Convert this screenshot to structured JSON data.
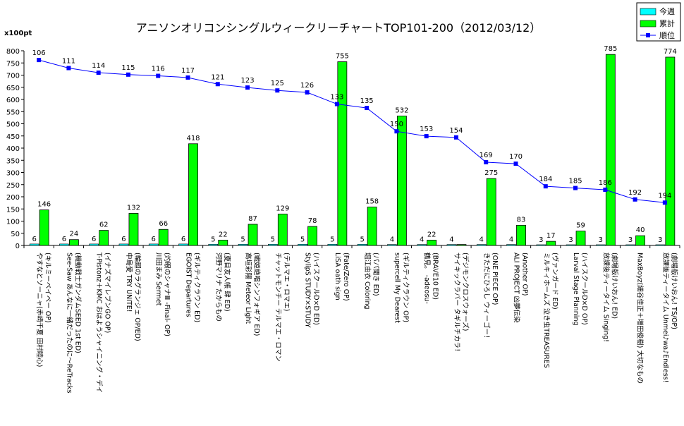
{
  "chart_data": {
    "type": "bar",
    "title": "アニソンオリコンシングルウィークリーチャートTOP101-200（2012/03/12）",
    "ylabel": "x100pt",
    "ylim": [
      0,
      800
    ],
    "yticks": [
      0,
      50,
      100,
      150,
      200,
      250,
      300,
      350,
      400,
      450,
      500,
      550,
      600,
      650,
      700,
      750,
      800
    ],
    "grid": false,
    "legend_position": "top-right",
    "categories": [
      "やすなとソーニャ(赤崎千夏 田村睦心) (キルミーベイベー OP)",
      "See-Saw あんなに一緒だったのに～ReTracks (機動戦士ガンダムSEED 1st ED)",
      "T-Pistonz＋KMC おはようシャイニング・デイ (イナズマイレブンGO OP)",
      "中島愛 TRY UNITE! (輪廻のラグランジェ OP/ED)",
      "川田まみ Sermet (灼眼のシャナⅢ -Final- OP)",
      "EGOIST Departures (ギルティクラウン ED)",
      "河野マリナ たからもの (夏目友人帳 肆 ED)",
      "高垣彩陽 Meteor Light (戦姫絶唱シンフォギア ED)",
      "チャットモンチー テルマエ・ロマン (テルマエ・ロマエ)",
      "StylipS STUDY×STUDY (ハイスクールD×D ED)",
      "LiSA oath sign (Fate/Zero OP)",
      "堀江由衣 Coloring (パパ聞き ED)",
      "supercell My Dearest (ギルティクラウン OP)",
      "鶴見。 -adeosu- (BRAVE10 ED)",
      "サイキックラバー タギルチカラ！ (デジモンクロスウォーズ)",
      "きただにひろし ウィーゴー！ (ONE PIECE OP)",
      "ALI PROJECT 凶夢伝染 (Another OP)",
      "ミルキィホームズ 泣き虫TREASURES (ヴァンガード ED)",
      "Larval Stage Planning (ハイスクールD×D OP)",
      "放課後ティータイム Singing! (劇場版けいおん! ED)",
      "MaxBoyz(細谷佳正＋増田俊樹) 大切なもの",
      "放課後ティータイム Unmei♪wa♪Endless! (劇場版けいおん! TS/OP)"
    ],
    "series": [
      {
        "name": "今週",
        "type": "bar",
        "color": "#00ffff",
        "values": [
          6,
          6,
          6,
          6,
          6,
          6,
          5,
          5,
          5,
          5,
          5,
          5,
          4,
          4,
          4,
          4,
          4,
          3,
          3,
          3,
          3,
          3
        ]
      },
      {
        "name": "累計",
        "type": "bar",
        "color": "#00ff00",
        "values": [
          146,
          24,
          62,
          132,
          66,
          418,
          22,
          87,
          129,
          78,
          755,
          158,
          532,
          22,
          4,
          275,
          83,
          17,
          59,
          785,
          40,
          774
        ]
      },
      {
        "name": "順位",
        "type": "line",
        "color": "#0000ff",
        "values": [
          106,
          111,
          114,
          115,
          116,
          117,
          121,
          123,
          125,
          126,
          133,
          135,
          150,
          153,
          154,
          169,
          170,
          184,
          185,
          186,
          192,
          194
        ],
        "plotted_values": [
          762,
          729,
          710,
          702,
          697,
          690,
          663,
          649,
          637,
          629,
          581,
          565,
          469,
          449,
          444,
          342,
          336,
          243,
          236,
          229,
          189,
          176
        ]
      }
    ],
    "labels": {
      "weekly": [
        "6",
        "6",
        "6",
        "6",
        "6",
        "6",
        "5",
        "5",
        "5",
        "5",
        "5",
        "5",
        "4",
        "4",
        "4",
        "4",
        "4",
        "3",
        "3",
        "3",
        "3",
        "3"
      ],
      "total": [
        "146",
        "24",
        "62",
        "132",
        "66",
        "418",
        "22",
        "87",
        "129",
        "78",
        "755",
        "158",
        "532",
        "22",
        "",
        "275",
        "83",
        "17",
        "59",
        "785",
        "40",
        "774"
      ],
      "rank": [
        "106",
        "111",
        "114",
        "115",
        "116",
        "117",
        "121",
        "123",
        "125",
        "126",
        "133",
        "135",
        "150",
        "153",
        "154",
        "169",
        "170",
        "184",
        "185",
        "186",
        "192",
        "194"
      ]
    }
  }
}
